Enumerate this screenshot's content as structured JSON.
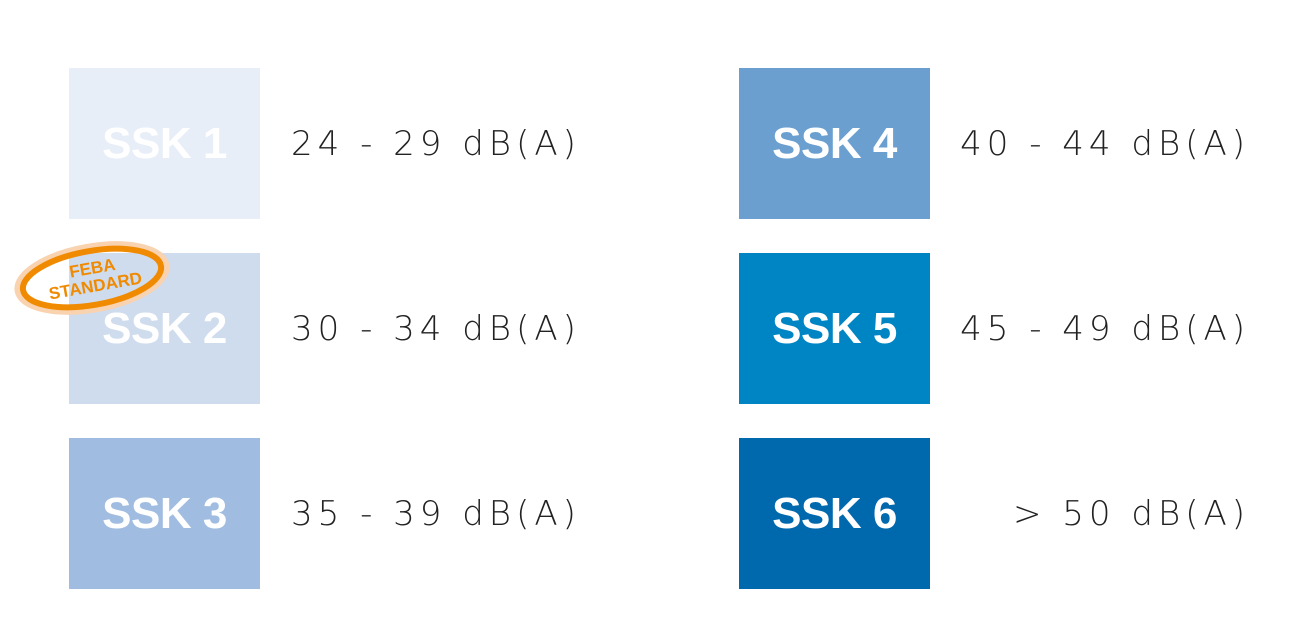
{
  "classes": [
    {
      "label": "SSK 1",
      "range": "24 - 29 dB(A)",
      "color": "#e8eef8"
    },
    {
      "label": "SSK 2",
      "range": "30 - 34 dB(A)",
      "color": "#cfdcee"
    },
    {
      "label": "SSK 3",
      "range": "35 - 39 dB(A)",
      "color": "#a0bce0"
    },
    {
      "label": "SSK 4",
      "range": "40 - 44 dB(A)",
      "color": "#6a9fd0"
    },
    {
      "label": "SSK 5",
      "range": "45 - 49 dB(A)",
      "color": "#0085c4"
    },
    {
      "label": "SSK 6",
      "range": "> 50 dB(A)",
      "color": "#0068ad"
    }
  ],
  "stamp": {
    "line1": "FEBA",
    "line2": "STANDARD",
    "color": "#f08a00"
  }
}
